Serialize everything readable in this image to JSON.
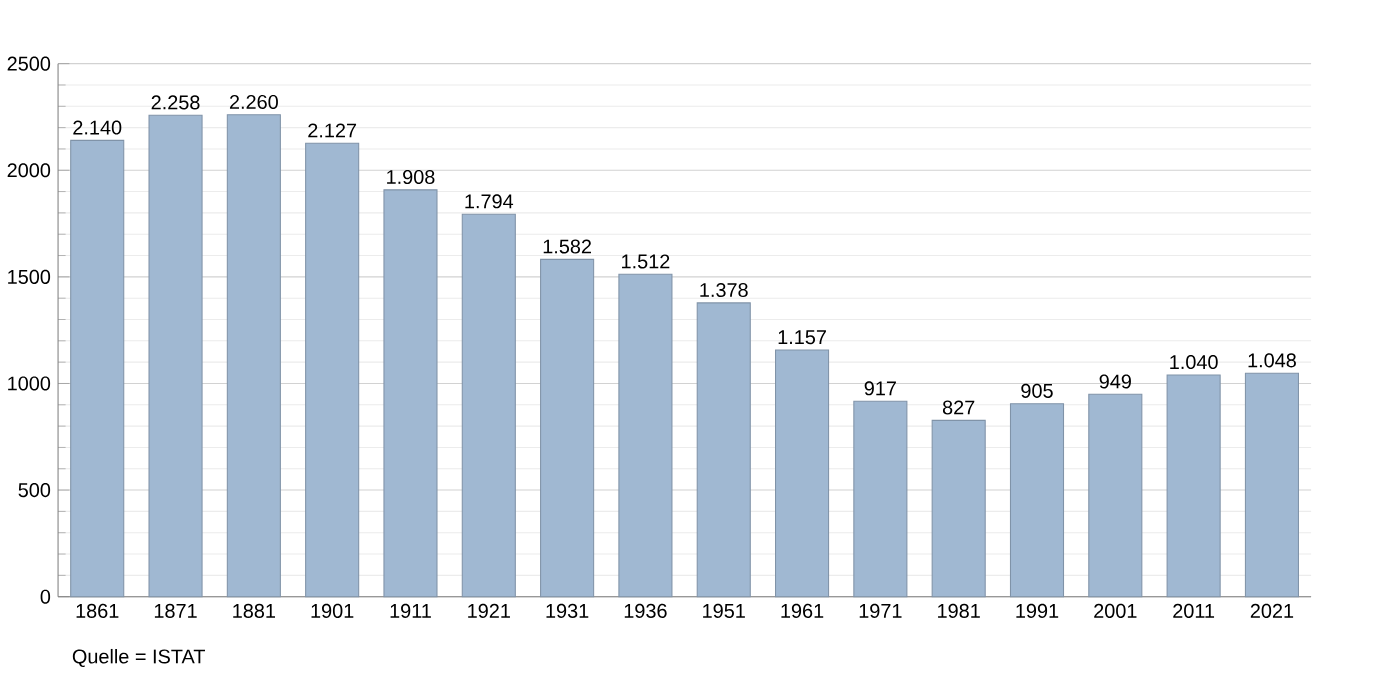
{
  "chart_data": {
    "type": "bar",
    "categories": [
      "1861",
      "1871",
      "1881",
      "1901",
      "1911",
      "1921",
      "1931",
      "1936",
      "1951",
      "1961",
      "1971",
      "1981",
      "1991",
      "2001",
      "2011",
      "2021"
    ],
    "values": [
      2140,
      2258,
      2260,
      2127,
      1908,
      1794,
      1582,
      1512,
      1378,
      1157,
      917,
      827,
      905,
      949,
      1040,
      1048
    ],
    "value_labels": [
      "2.140",
      "2.258",
      "2.260",
      "2.127",
      "1.908",
      "1.794",
      "1.582",
      "1.512",
      "1.378",
      "1.157",
      "917",
      "827",
      "905",
      "949",
      "1.040",
      "1.048"
    ],
    "color": "#a0b8d2",
    "ylim": [
      0,
      2500
    ],
    "yticks": [
      0,
      500,
      1000,
      1500,
      2000,
      2500
    ],
    "grid": "y",
    "annotations": [
      "Quelle = ISTAT"
    ]
  }
}
